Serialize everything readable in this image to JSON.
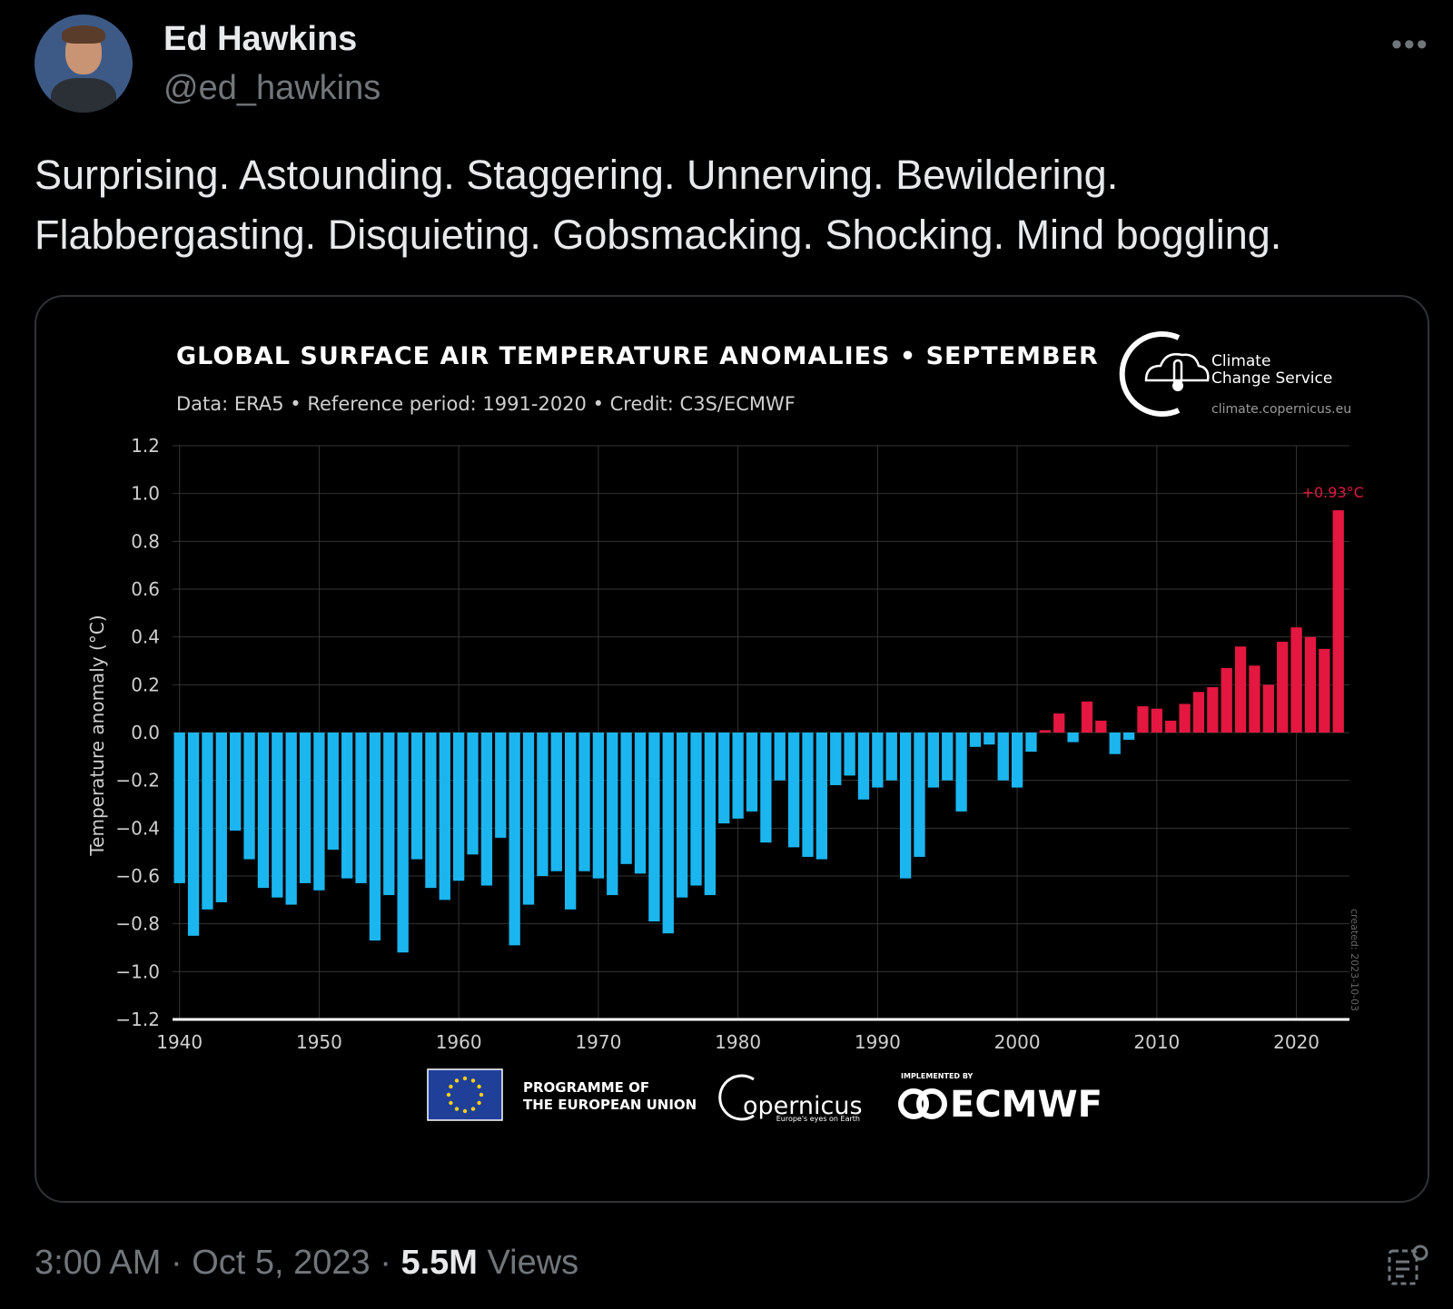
{
  "author": {
    "name": "Ed Hawkins",
    "handle": "@ed_hawkins"
  },
  "tweet": {
    "text_line1": "Surprising. Astounding. Staggering. Unnerving. Bewildering.",
    "text_line2": "Flabbergasting. Disquieting. Gobsmacking. Shocking. Mind boggling."
  },
  "meta": {
    "time": "3:00 AM",
    "date": "Oct 5, 2023",
    "views_count": "5.5M",
    "views_label": "Views",
    "sep": "·"
  },
  "logos": {
    "c3s_line1": "Climate",
    "c3s_line2": "Change Service",
    "c3s_url": "climate.copernicus.eu",
    "eu_line1": "PROGRAMME OF",
    "eu_line2": "THE EUROPEAN UNION",
    "copernicus": "opernicus",
    "copernicus_tagline": "Europe's eyes on Earth",
    "ecmwf_small": "IMPLEMENTED BY",
    "ecmwf": "ECMWF",
    "created": "created: 2023-10-03"
  },
  "colors": {
    "cold": "#1bb6f0",
    "warm": "#e3173f",
    "label_warm": "#e3173f"
  },
  "icons": [
    "more-icon",
    "analytics-icon",
    "c3s-logo-icon",
    "eu-flag-icon",
    "copernicus-logo-icon",
    "ecmwf-logo-icon"
  ],
  "chart_data": {
    "type": "bar",
    "title": "GLOBAL SURFACE AIR TEMPERATURE ANOMALIES • SEPTEMBER",
    "subtitle": "Data: ERA5 • Reference period: 1991-2020 • Credit: C3S/ECMWF",
    "ylabel": "Temperature anomaly (°C)",
    "xlabel": "",
    "ylim": [
      -1.2,
      1.2
    ],
    "xlim": [
      1939.5,
      2023.8
    ],
    "yticks": [
      "1.2",
      "1.0",
      "0.8",
      "0.6",
      "0.4",
      "0.2",
      "0.0",
      "−0.2",
      "−0.4",
      "−0.6",
      "−0.8",
      "−1.0",
      "−1.2"
    ],
    "ytick_values": [
      1.2,
      1.0,
      0.8,
      0.6,
      0.4,
      0.2,
      0.0,
      -0.2,
      -0.4,
      -0.6,
      -0.8,
      -1.0,
      -1.2
    ],
    "xticks": [
      "1940",
      "1950",
      "1960",
      "1970",
      "1980",
      "1990",
      "2000",
      "2010",
      "2020"
    ],
    "xtick_values": [
      1940,
      1950,
      1960,
      1970,
      1980,
      1990,
      2000,
      2010,
      2020
    ],
    "grid": true,
    "annotation": {
      "year": 2023,
      "text": "+0.93°C"
    },
    "years": [
      1940,
      1941,
      1942,
      1943,
      1944,
      1945,
      1946,
      1947,
      1948,
      1949,
      1950,
      1951,
      1952,
      1953,
      1954,
      1955,
      1956,
      1957,
      1958,
      1959,
      1960,
      1961,
      1962,
      1963,
      1964,
      1965,
      1966,
      1967,
      1968,
      1969,
      1970,
      1971,
      1972,
      1973,
      1974,
      1975,
      1976,
      1977,
      1978,
      1979,
      1980,
      1981,
      1982,
      1983,
      1984,
      1985,
      1986,
      1987,
      1988,
      1989,
      1990,
      1991,
      1992,
      1993,
      1994,
      1995,
      1996,
      1997,
      1998,
      1999,
      2000,
      2001,
      2002,
      2003,
      2004,
      2005,
      2006,
      2007,
      2008,
      2009,
      2010,
      2011,
      2012,
      2013,
      2014,
      2015,
      2016,
      2017,
      2018,
      2019,
      2020,
      2021,
      2022,
      2023
    ],
    "values": [
      -0.63,
      -0.85,
      -0.74,
      -0.71,
      -0.41,
      -0.53,
      -0.65,
      -0.69,
      -0.72,
      -0.63,
      -0.66,
      -0.49,
      -0.61,
      -0.63,
      -0.87,
      -0.68,
      -0.92,
      -0.53,
      -0.65,
      -0.7,
      -0.62,
      -0.51,
      -0.64,
      -0.44,
      -0.89,
      -0.72,
      -0.6,
      -0.58,
      -0.74,
      -0.58,
      -0.61,
      -0.68,
      -0.55,
      -0.59,
      -0.79,
      -0.84,
      -0.69,
      -0.64,
      -0.68,
      -0.38,
      -0.36,
      -0.33,
      -0.46,
      -0.2,
      -0.48,
      -0.52,
      -0.53,
      -0.22,
      -0.18,
      -0.28,
      -0.23,
      -0.2,
      -0.61,
      -0.52,
      -0.23,
      -0.2,
      -0.33,
      -0.06,
      -0.05,
      -0.2,
      -0.23,
      -0.08,
      0.01,
      0.08,
      -0.04,
      0.13,
      0.05,
      -0.09,
      -0.03,
      0.11,
      0.1,
      0.05,
      0.12,
      0.17,
      0.19,
      0.27,
      0.36,
      0.28,
      0.2,
      0.38,
      0.44,
      0.4,
      0.35,
      0.93
    ]
  }
}
